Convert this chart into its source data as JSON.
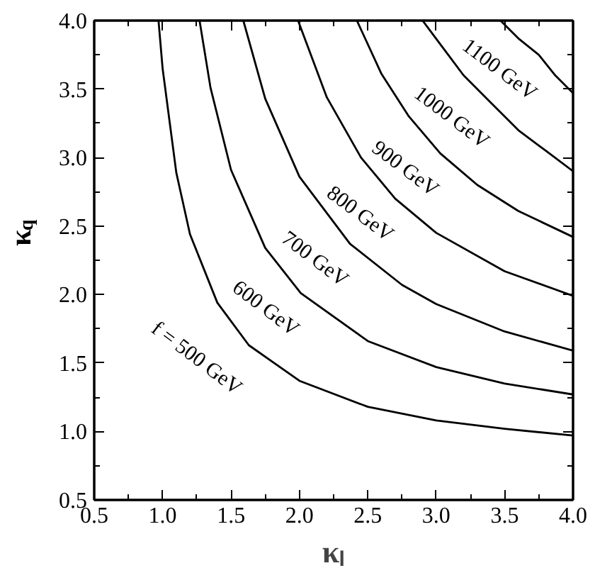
{
  "chart_data": {
    "type": "line",
    "xlabel": "κₗ",
    "ylabel": "κ$_{q}$",
    "xlim": [
      0.5,
      4.0
    ],
    "ylim": [
      0.5,
      4.0
    ],
    "xticks": [
      {
        "value": 0.5,
        "label": "0.5"
      },
      {
        "value": 1.0,
        "label": "1.0"
      },
      {
        "value": 1.5,
        "label": "1.5"
      },
      {
        "value": 2.0,
        "label": "2.0"
      },
      {
        "value": 2.5,
        "label": "2.5"
      },
      {
        "value": 3.0,
        "label": "3.0"
      },
      {
        "value": 3.5,
        "label": "3.5"
      },
      {
        "value": 4.0,
        "label": "4.0"
      }
    ],
    "yticks": [
      {
        "value": 0.5,
        "label": "0.5"
      },
      {
        "value": 1.0,
        "label": "1.0"
      },
      {
        "value": 1.5,
        "label": "1.5"
      },
      {
        "value": 2.0,
        "label": "2.0"
      },
      {
        "value": 2.5,
        "label": "2.5"
      },
      {
        "value": 3.0,
        "label": "3.0"
      },
      {
        "value": 3.5,
        "label": "3.5"
      },
      {
        "value": 4.0,
        "label": "4.0"
      }
    ],
    "grid": false,
    "marker": "none",
    "line_style": "solid",
    "series": [
      {
        "color": "#000000",
        "x": [
          0.97,
          1.0,
          1.1,
          1.2,
          1.4,
          1.63,
          2.0,
          2.5,
          3.0,
          3.5,
          4.0
        ],
        "values": [
          4.0,
          3.65,
          2.89,
          2.44,
          1.94,
          1.63,
          1.37,
          1.18,
          1.08,
          1.02,
          0.97
        ]
      },
      {
        "color": "#000000",
        "x": [
          1.27,
          1.35,
          1.5,
          1.75,
          2.01,
          2.5,
          3.0,
          3.5,
          4.0
        ],
        "values": [
          4.0,
          3.51,
          2.91,
          2.34,
          2.01,
          1.66,
          1.47,
          1.35,
          1.27
        ]
      },
      {
        "color": "#000000",
        "x": [
          1.59,
          1.75,
          2.0,
          2.37,
          2.75,
          3.0,
          3.5,
          4.0
        ],
        "values": [
          4.0,
          3.43,
          2.86,
          2.37,
          2.07,
          1.93,
          1.73,
          1.59
        ]
      },
      {
        "color": "#000000",
        "x": [
          1.99,
          2.2,
          2.45,
          2.7,
          3.0,
          3.5,
          4.0
        ],
        "values": [
          4.0,
          3.44,
          3.0,
          2.7,
          2.45,
          2.17,
          1.99
        ]
      },
      {
        "color": "#000000",
        "x": [
          2.42,
          2.6,
          2.8,
          3.03,
          3.3,
          3.6,
          4.0
        ],
        "values": [
          4.0,
          3.61,
          3.3,
          3.03,
          2.8,
          2.61,
          2.42
        ]
      },
      {
        "color": "#000000",
        "x": [
          2.9,
          3.05,
          3.2,
          3.4,
          3.6,
          3.8,
          4.0
        ],
        "values": [
          4.0,
          3.8,
          3.6,
          3.4,
          3.2,
          3.05,
          2.9
        ]
      },
      {
        "color": "#000000",
        "x": [
          3.47,
          3.6,
          3.75,
          3.87,
          4.0
        ],
        "values": [
          4.0,
          3.87,
          3.75,
          3.6,
          3.47
        ]
      }
    ],
    "annotations": [
      "f = 500 GeV",
      "600 GeV",
      "700 GeV",
      "800 GeV",
      "900 GeV",
      "1000 GeV",
      "1100 GeV"
    ]
  }
}
